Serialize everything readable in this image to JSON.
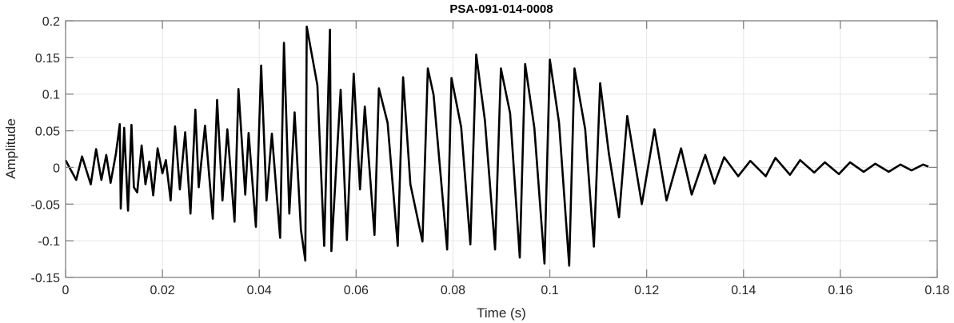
{
  "chart_data": {
    "type": "line",
    "title": "PSA-091-014-0008",
    "xlabel": "Time (s)",
    "ylabel": "Amplitude",
    "xlim": [
      0,
      0.18
    ],
    "ylim": [
      -0.15,
      0.2
    ],
    "xticks": [
      0,
      0.02,
      0.04,
      0.06,
      0.08,
      0.1,
      0.12,
      0.14,
      0.16,
      0.18
    ],
    "xtick_labels": [
      "0",
      "0.02",
      "0.04",
      "0.06",
      "0.08",
      "0.1",
      "0.12",
      "0.14",
      "0.16",
      "0.18"
    ],
    "yticks": [
      -0.15,
      -0.1,
      -0.05,
      0,
      0.05,
      0.1,
      0.15,
      0.2
    ],
    "ytick_labels": [
      "-0.15",
      "-0.1",
      "-0.05",
      "0",
      "0.05",
      "0.1",
      "0.15",
      "0.2"
    ],
    "grid": true,
    "line_color": "#000000",
    "grid_color": "#e6e6e6",
    "axis_color": "#808080",
    "series": [
      {
        "x": [
          0,
          0.0008,
          0.0022,
          0.0034,
          0.0052,
          0.0063,
          0.0074,
          0.0084,
          0.0093,
          0.0104,
          0.0112,
          0.0114,
          0.0121,
          0.0129,
          0.0136,
          0.0141,
          0.0148,
          0.0157,
          0.0165,
          0.0173,
          0.0181,
          0.019,
          0.02,
          0.0207,
          0.0217,
          0.0226,
          0.0236,
          0.0247,
          0.0258,
          0.0268,
          0.0275,
          0.0288,
          0.0304,
          0.0313,
          0.0324,
          0.0334,
          0.0349,
          0.0357,
          0.0371,
          0.0378,
          0.0393,
          0.0404,
          0.0415,
          0.0426,
          0.0443,
          0.0451,
          0.0462,
          0.0473,
          0.0486,
          0.0495,
          0.0498,
          0.052,
          0.0534,
          0.0546,
          0.0549,
          0.0568,
          0.0581,
          0.0595,
          0.0608,
          0.0618,
          0.0638,
          0.0647,
          0.0665,
          0.0686,
          0.0697,
          0.0712,
          0.0737,
          0.0748,
          0.076,
          0.0788,
          0.0797,
          0.0817,
          0.0836,
          0.0848,
          0.0866,
          0.0887,
          0.0899,
          0.0918,
          0.0938,
          0.0949,
          0.0968,
          0.0989,
          0.1,
          0.1019,
          0.104,
          0.1051,
          0.1073,
          0.1091,
          0.1104,
          0.1122,
          0.1143,
          0.116,
          0.119,
          0.1216,
          0.1241,
          0.1271,
          0.1293,
          0.1321,
          0.134,
          0.136,
          0.1389,
          0.1414,
          0.1446,
          0.1466,
          0.1496,
          0.1517,
          0.1546,
          0.1568,
          0.1597,
          0.162,
          0.1648,
          0.1672,
          0.17,
          0.1724,
          0.1747,
          0.1771,
          0.1782
        ],
        "y": [
          0.01,
          0.0,
          -0.017,
          0.015,
          -0.023,
          0.025,
          -0.017,
          0.017,
          -0.021,
          0.019,
          0.059,
          -0.056,
          0.054,
          -0.059,
          0.058,
          -0.027,
          -0.034,
          0.03,
          -0.023,
          0.008,
          -0.038,
          0.026,
          -0.008,
          0.01,
          -0.045,
          0.056,
          -0.03,
          0.048,
          -0.063,
          0.079,
          -0.027,
          0.057,
          -0.07,
          0.092,
          -0.045,
          0.052,
          -0.074,
          0.107,
          -0.037,
          0.047,
          -0.081,
          0.139,
          -0.045,
          0.046,
          -0.096,
          0.17,
          -0.063,
          0.075,
          -0.085,
          -0.127,
          0.192,
          0.112,
          -0.107,
          0.188,
          -0.114,
          0.106,
          -0.099,
          0.128,
          -0.03,
          0.083,
          -0.092,
          0.108,
          0.061,
          -0.107,
          0.123,
          -0.023,
          -0.101,
          0.135,
          0.099,
          -0.112,
          0.122,
          0.055,
          -0.105,
          0.154,
          0.064,
          -0.112,
          0.135,
          0.074,
          -0.123,
          0.141,
          0.054,
          -0.131,
          0.147,
          0.061,
          -0.134,
          0.135,
          0.052,
          -0.108,
          0.115,
          0.019,
          -0.068,
          0.07,
          -0.05,
          0.052,
          -0.045,
          0.026,
          -0.037,
          0.017,
          -0.022,
          0.014,
          -0.012,
          0.009,
          -0.012,
          0.013,
          -0.01,
          0.01,
          -0.007,
          0.007,
          -0.009,
          0.007,
          -0.006,
          0.005,
          -0.006,
          0.004,
          -0.004,
          0.004,
          0.001
        ]
      }
    ]
  }
}
